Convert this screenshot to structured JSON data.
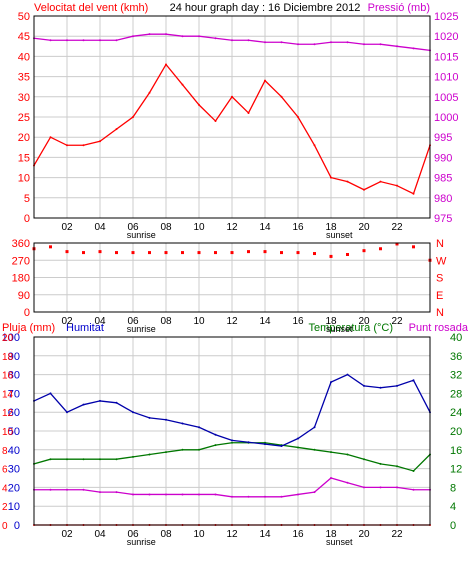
{
  "header": {
    "wind_title": "Velocitat del vent (kmh)",
    "graph_title": "24 hour graph day : 16 Diciembre 2012",
    "pressure_title": "Pressió (mb)"
  },
  "bottom_header": {
    "rain_label": "Pluja (mm)",
    "humidity_label": "Humitat",
    "temp_label": "Temperatura (°C)",
    "dew_label": "Punt rosada"
  },
  "x_axis": {
    "ticks": [
      "02",
      "04",
      "06",
      "08",
      "10",
      "12",
      "14",
      "16",
      "18",
      "20",
      "22"
    ],
    "sunrise_label": "sunrise",
    "sunset_label": "sunset"
  },
  "colors": {
    "wind_speed": "#ff0000",
    "wind_avg": "#0000cc",
    "wind_min": "#007700",
    "pressure": "#cc00cc",
    "direction": "#ff0000",
    "humidity": "#0000aa",
    "temperature": "#007700",
    "dewpoint": "#cc00cc",
    "rain": "#ff0000",
    "left_axis": "#ff0000",
    "right_axis_top": "#cc00cc",
    "left_axis_bottom": "#0000cc",
    "right_axis_bottom": "#007700"
  },
  "chart_data": [
    {
      "type": "line",
      "title": "24 hour graph day : 16 Diciembre 2012",
      "x": [
        0,
        1,
        2,
        3,
        4,
        5,
        6,
        7,
        8,
        9,
        10,
        11,
        12,
        13,
        14,
        15,
        16,
        17,
        18,
        19,
        20,
        21,
        22,
        23,
        24
      ],
      "y_left_ticks": [
        "0",
        "5",
        "10",
        "15",
        "20",
        "25",
        "30",
        "35",
        "40",
        "45",
        "50"
      ],
      "ylim_left": [
        0,
        50
      ],
      "y_right_ticks": [
        "975",
        "980",
        "985",
        "990",
        "995",
        "1000",
        "1005",
        "1010",
        "1015",
        "1020",
        "1025"
      ],
      "ylim_right": [
        975,
        1025
      ],
      "series": [
        {
          "name": "Velocitat del vent",
          "axis": "left",
          "values": [
            13,
            20,
            18,
            18,
            19,
            22,
            25,
            31,
            38,
            33,
            28,
            24,
            30,
            26,
            34,
            30,
            25,
            18,
            10,
            9,
            7,
            9,
            8,
            6,
            18
          ]
        },
        {
          "name": "Pressió",
          "axis": "right",
          "values": [
            1019.5,
            1019,
            1019,
            1019,
            1019,
            1019,
            1020,
            1020.5,
            1020.5,
            1020,
            1020,
            1019.5,
            1019,
            1019,
            1018.5,
            1018.5,
            1018,
            1018,
            1018.5,
            1018.5,
            1018,
            1018,
            1017.5,
            1017,
            1016.5
          ]
        }
      ]
    },
    {
      "type": "scatter",
      "y_ticks": [
        "360",
        "270",
        "180",
        "90",
        "0"
      ],
      "y_right_ticks": [
        "N",
        "W",
        "S",
        "E",
        "N"
      ],
      "ylim": [
        0,
        360
      ],
      "x": [
        0,
        1,
        2,
        3,
        4,
        5,
        6,
        7,
        8,
        9,
        10,
        11,
        12,
        13,
        14,
        15,
        16,
        17,
        18,
        19,
        20,
        21,
        22,
        23,
        24
      ],
      "values": [
        330,
        340,
        315,
        310,
        315,
        310,
        310,
        310,
        310,
        310,
        310,
        310,
        310,
        315,
        315,
        310,
        310,
        305,
        290,
        300,
        320,
        330,
        355,
        340,
        270
      ]
    },
    {
      "type": "line",
      "x": [
        0,
        1,
        2,
        3,
        4,
        5,
        6,
        7,
        8,
        9,
        10,
        11,
        12,
        13,
        14,
        15,
        16,
        17,
        18,
        19,
        20,
        21,
        22,
        23,
        24
      ],
      "y_left_ticks": [
        "0",
        "10",
        "20",
        "30",
        "40",
        "50",
        "60",
        "70",
        "80",
        "90",
        "100"
      ],
      "y_left_scale_ticks": [
        "0",
        "2",
        "4",
        "6",
        "8",
        "10",
        "12",
        "14",
        "16",
        "18",
        "20"
      ],
      "ylim_left": [
        0,
        100
      ],
      "y_right_ticks": [
        "0",
        "4",
        "8",
        "12",
        "16",
        "20",
        "24",
        "28",
        "32",
        "36",
        "40"
      ],
      "ylim_right": [
        0,
        40
      ],
      "series": [
        {
          "name": "Humitat",
          "axis": "left",
          "values": [
            66,
            70,
            60,
            64,
            66,
            65,
            60,
            57,
            56,
            54,
            52,
            48,
            45,
            44,
            43,
            42,
            46,
            52,
            76,
            80,
            74,
            73,
            74,
            77,
            60
          ]
        },
        {
          "name": "Temperatura",
          "axis": "right",
          "values": [
            13,
            14,
            14,
            14,
            14,
            14,
            14.5,
            15,
            15.5,
            16,
            16,
            17,
            17.5,
            17.5,
            17.5,
            17,
            16.5,
            16,
            15.5,
            15,
            14,
            13,
            12.5,
            11.5,
            15
          ]
        },
        {
          "name": "Punt rosada",
          "axis": "right",
          "values": [
            7.5,
            7.5,
            7.5,
            7.5,
            7,
            7,
            6.5,
            6.5,
            6.5,
            6.5,
            6.5,
            6.5,
            6,
            6,
            6,
            6,
            6.5,
            7,
            10,
            9,
            8,
            8,
            8,
            7.5,
            7.5
          ]
        },
        {
          "name": "Pluja",
          "axis": "left",
          "values": [
            0,
            0,
            0,
            0,
            0,
            0,
            0,
            0,
            0,
            0,
            0,
            0,
            0,
            0,
            0,
            0,
            0,
            0,
            0,
            0,
            0,
            0,
            0,
            0,
            0
          ]
        }
      ]
    }
  ]
}
